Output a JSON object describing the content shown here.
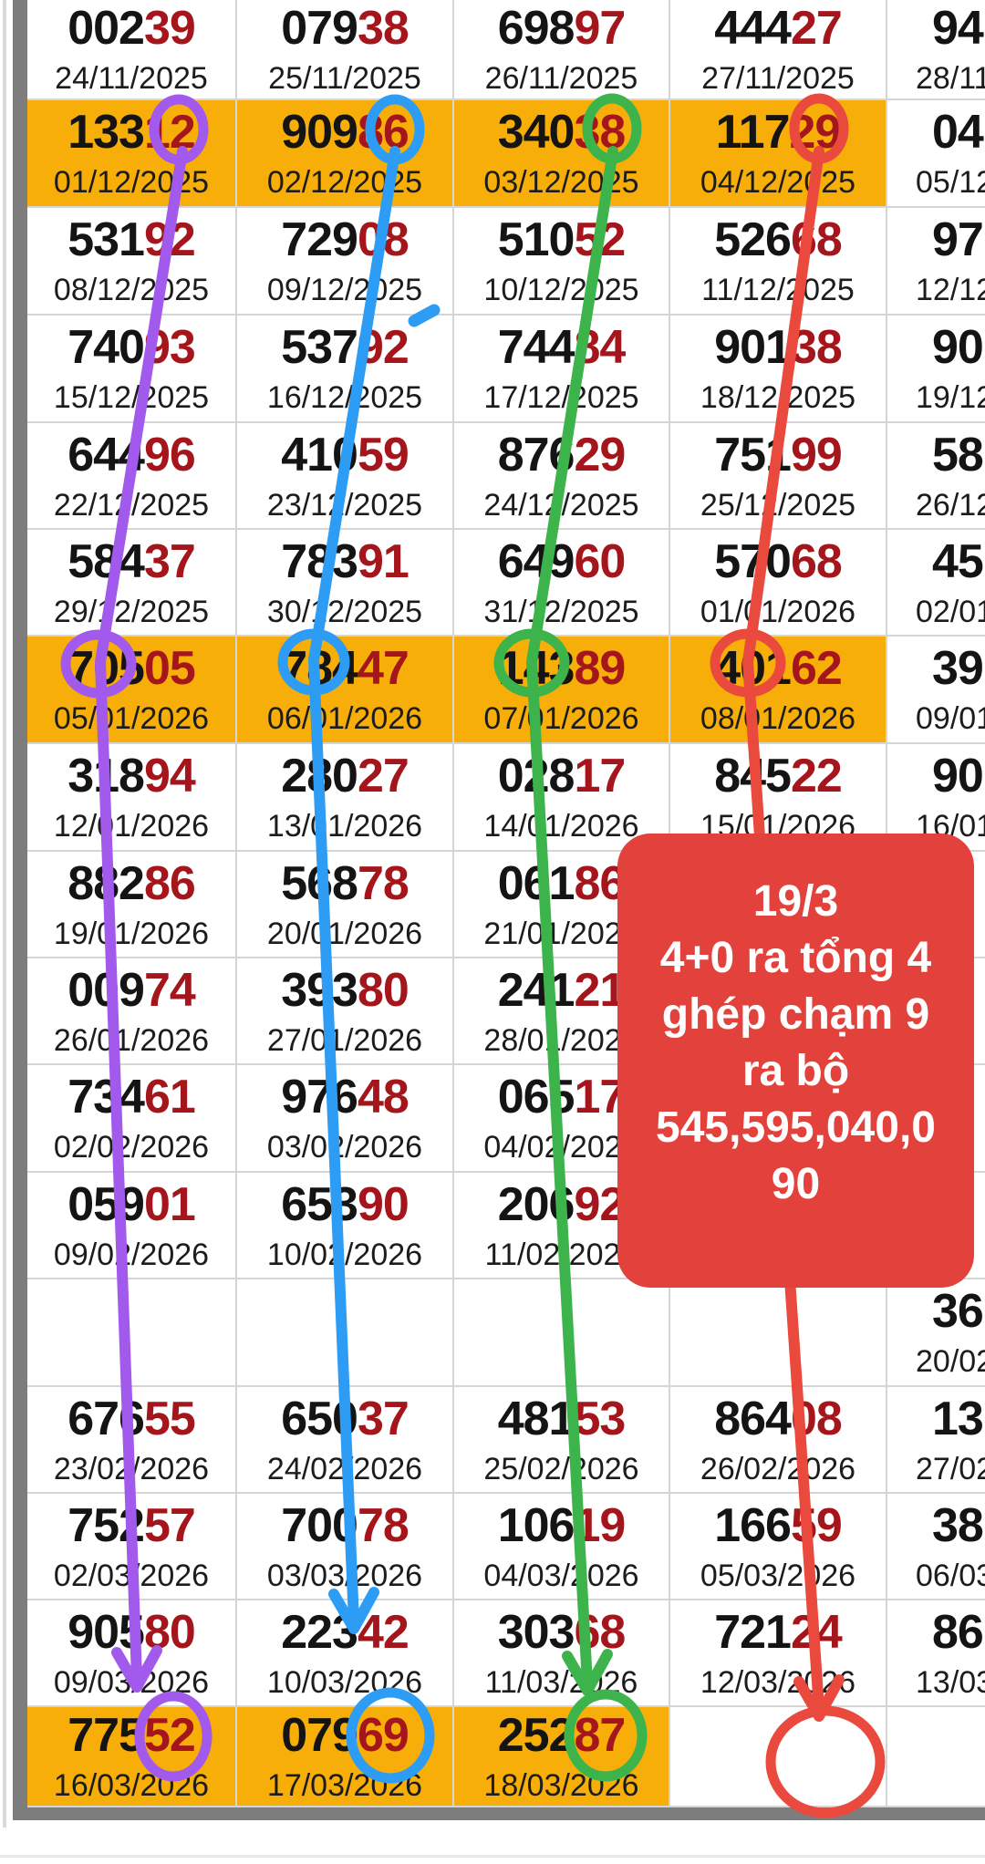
{
  "colors": {
    "highlight": "#F7AE08",
    "number_black": "#141414",
    "number_red": "#A4161C",
    "date_text": "#1c1c1c",
    "grid_line": "#d5d5d5",
    "rail": "#7d7d7d",
    "rail_light": "#dadada"
  },
  "table": {
    "rows": [
      [
        {
          "n": "00239",
          "d": "24/11/2025"
        },
        {
          "n": "07938",
          "d": "25/11/2025"
        },
        {
          "n": "69897",
          "d": "26/11/2025"
        },
        {
          "n": "44427",
          "d": "27/11/2025"
        },
        {
          "n": "94",
          "d": "28/11",
          "cut": true
        }
      ],
      [
        {
          "n": "13312",
          "d": "01/12/2025",
          "hl": true
        },
        {
          "n": "90986",
          "d": "02/12/2025",
          "hl": true
        },
        {
          "n": "34038",
          "d": "03/12/2025",
          "hl": true
        },
        {
          "n": "11729",
          "d": "04/12/2025",
          "hl": true
        },
        {
          "n": "04",
          "d": "05/12",
          "cut": true
        }
      ],
      [
        {
          "n": "53192",
          "d": "08/12/2025"
        },
        {
          "n": "72908",
          "d": "09/12/2025"
        },
        {
          "n": "51052",
          "d": "10/12/2025"
        },
        {
          "n": "52668",
          "d": "11/12/2025"
        },
        {
          "n": "97",
          "d": "12/12",
          "cut": true
        }
      ],
      [
        {
          "n": "74093",
          "d": "15/12/2025"
        },
        {
          "n": "53792",
          "d": "16/12/2025"
        },
        {
          "n": "74484",
          "d": "17/12/2025"
        },
        {
          "n": "90138",
          "d": "18/12/2025"
        },
        {
          "n": "90",
          "d": "19/12",
          "cut": true
        }
      ],
      [
        {
          "n": "64496",
          "d": "22/12/2025"
        },
        {
          "n": "41059",
          "d": "23/12/2025"
        },
        {
          "n": "87629",
          "d": "24/12/2025"
        },
        {
          "n": "75199",
          "d": "25/12/2025"
        },
        {
          "n": "58",
          "d": "26/12",
          "cut": true
        }
      ],
      [
        {
          "n": "58437",
          "d": "29/12/2025"
        },
        {
          "n": "78391",
          "d": "30/12/2025"
        },
        {
          "n": "64960",
          "d": "31/12/2025"
        },
        {
          "n": "57068",
          "d": "01/01/2026"
        },
        {
          "n": "45",
          "d": "02/01",
          "cut": true
        }
      ],
      [
        {
          "n": "70505",
          "d": "05/01/2026",
          "hl": true
        },
        {
          "n": "78447",
          "d": "06/01/2026",
          "hl": true
        },
        {
          "n": "14389",
          "d": "07/01/2026",
          "hl": true
        },
        {
          "n": "40162",
          "d": "08/01/2026",
          "hl": true
        },
        {
          "n": "39",
          "d": "09/01",
          "cut": true
        }
      ],
      [
        {
          "n": "31894",
          "d": "12/01/2026"
        },
        {
          "n": "28027",
          "d": "13/01/2026"
        },
        {
          "n": "02817",
          "d": "14/01/2026"
        },
        {
          "n": "84522",
          "d": "15/01/2026"
        },
        {
          "n": "90",
          "d": "16/01",
          "cut": true
        }
      ],
      [
        {
          "n": "88286",
          "d": "19/01/2026"
        },
        {
          "n": "56878",
          "d": "20/01/2026"
        },
        {
          "n": "06186",
          "d": "21/01/2026"
        },
        {},
        {}
      ],
      [
        {
          "n": "00974",
          "d": "26/01/2026"
        },
        {
          "n": "39380",
          "d": "27/01/2026"
        },
        {
          "n": "24121",
          "d": "28/01/2026"
        },
        {},
        {}
      ],
      [
        {
          "n": "73461",
          "d": "02/02/2026"
        },
        {
          "n": "97648",
          "d": "03/02/2026"
        },
        {
          "n": "06517",
          "d": "04/02/2026"
        },
        {},
        {}
      ],
      [
        {
          "n": "05901",
          "d": "09/02/2026"
        },
        {
          "n": "65390",
          "d": "10/02/2026"
        },
        {
          "n": "20692",
          "d": "11/02/2026"
        },
        {},
        {}
      ],
      [
        {},
        {},
        {},
        {},
        {
          "n": "36",
          "d": "20/02",
          "cut": true
        }
      ],
      [
        {
          "n": "67655",
          "d": "23/02/2026"
        },
        {
          "n": "65037",
          "d": "24/02/2026"
        },
        {
          "n": "48153",
          "d": "25/02/2026"
        },
        {
          "n": "86408",
          "d": "26/02/2026"
        },
        {
          "n": "13",
          "d": "27/02",
          "cut": true
        }
      ],
      [
        {
          "n": "75257",
          "d": "02/03/2026"
        },
        {
          "n": "70078",
          "d": "03/03/2026"
        },
        {
          "n": "10619",
          "d": "04/03/2026"
        },
        {
          "n": "16659",
          "d": "05/03/2026"
        },
        {
          "n": "38",
          "d": "06/03",
          "cut": true
        }
      ],
      [
        {
          "n": "90580",
          "d": "09/03/2026"
        },
        {
          "n": "22342",
          "d": "10/03/2026"
        },
        {
          "n": "30368",
          "d": "11/03/2026"
        },
        {
          "n": "72124",
          "d": "12/03/2026"
        },
        {
          "n": "86",
          "d": "13/03",
          "cut": true
        }
      ],
      [
        {
          "n": "77552",
          "d": "16/03/2026",
          "hl": true
        },
        {
          "n": "07969",
          "d": "17/03/2026",
          "hl": true
        },
        {
          "n": "25287",
          "d": "18/03/2026",
          "hl": true
        },
        {},
        {}
      ]
    ]
  },
  "callout": {
    "bg": "#E2423B",
    "text_color": "#ffffff",
    "lines": [
      "19/3",
      "4+0 ra tổng 4",
      "ghép chạm 9",
      "ra bộ",
      "545,595,040,0",
      "90"
    ]
  },
  "annotations": {
    "purple": {
      "color": "#A25AEC",
      "circled": [
        "2 (01/12/2025)",
        "70 (05/01/2026)",
        "52 (16/03/2026)"
      ]
    },
    "blue": {
      "color": "#2D9CF4",
      "circled": [
        "6 (02/12/2025)",
        "78 (06/01/2026)",
        "69 (17/03/2026)"
      ]
    },
    "green": {
      "color": "#3CB44B",
      "circled": [
        "8 (03/12/2025)",
        "14 (07/01/2026)",
        "87 (18/03/2026)"
      ]
    },
    "red": {
      "color": "#EA4A3D",
      "circled": [
        "9 (04/12/2025)",
        "40 (08/01/2026)",
        "empty cell (19/03)"
      ]
    }
  }
}
